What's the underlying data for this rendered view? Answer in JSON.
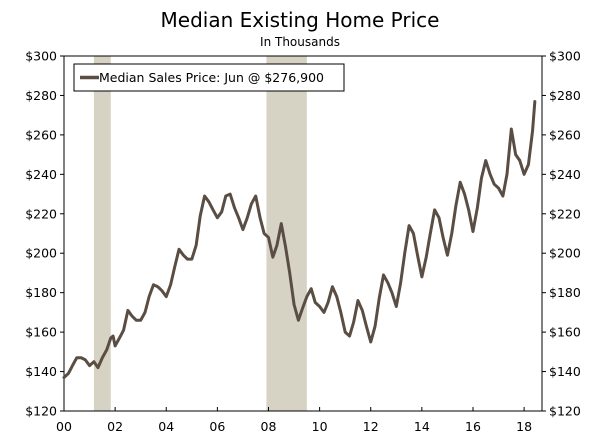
{
  "chart_data": {
    "type": "line",
    "title": "Median Existing Home Price",
    "subtitle": "In Thousands",
    "xlabel": "",
    "ylabel": "",
    "x_range": [
      2000,
      2018.7
    ],
    "ylim": [
      120,
      300
    ],
    "y_ticks": [
      120,
      140,
      160,
      180,
      200,
      220,
      240,
      260,
      280,
      300
    ],
    "y_tick_labels": [
      "$120",
      "$140",
      "$160",
      "$180",
      "$200",
      "$220",
      "$240",
      "$260",
      "$280",
      "$300"
    ],
    "x_ticks": [
      2000,
      2002,
      2004,
      2006,
      2008,
      2010,
      2012,
      2014,
      2016,
      2018
    ],
    "x_tick_labels": [
      "00",
      "02",
      "04",
      "06",
      "08",
      "10",
      "12",
      "14",
      "16",
      "18"
    ],
    "grid": false,
    "legend": {
      "placement": "top-left",
      "label": "Median Sales Price: Jun @ $276,900"
    },
    "line_color": "#5a4d43",
    "recession_color": "#d6d2c4",
    "recessions": [
      {
        "start": 2001.17,
        "end": 2001.83
      },
      {
        "start": 2007.92,
        "end": 2009.5
      }
    ],
    "series": [
      {
        "name": "Median Sales Price",
        "points": [
          [
            2000.0,
            137
          ],
          [
            2000.17,
            139
          ],
          [
            2000.33,
            143
          ],
          [
            2000.5,
            147
          ],
          [
            2000.67,
            147
          ],
          [
            2000.83,
            146
          ],
          [
            2001.0,
            143
          ],
          [
            2001.17,
            145
          ],
          [
            2001.33,
            142
          ],
          [
            2001.5,
            147
          ],
          [
            2001.67,
            151
          ],
          [
            2001.83,
            157
          ],
          [
            2001.92,
            158
          ],
          [
            2002.0,
            153
          ],
          [
            2002.17,
            157
          ],
          [
            2002.33,
            161
          ],
          [
            2002.5,
            171
          ],
          [
            2002.67,
            168
          ],
          [
            2002.83,
            166
          ],
          [
            2003.0,
            166
          ],
          [
            2003.17,
            170
          ],
          [
            2003.33,
            178
          ],
          [
            2003.5,
            184
          ],
          [
            2003.67,
            183
          ],
          [
            2003.83,
            181
          ],
          [
            2004.0,
            178
          ],
          [
            2004.17,
            184
          ],
          [
            2004.33,
            193
          ],
          [
            2004.5,
            202
          ],
          [
            2004.67,
            199
          ],
          [
            2004.83,
            197
          ],
          [
            2005.0,
            197
          ],
          [
            2005.17,
            204
          ],
          [
            2005.33,
            219
          ],
          [
            2005.5,
            229
          ],
          [
            2005.67,
            226
          ],
          [
            2005.83,
            222
          ],
          [
            2006.0,
            218
          ],
          [
            2006.17,
            221
          ],
          [
            2006.33,
            229
          ],
          [
            2006.5,
            230
          ],
          [
            2006.67,
            223
          ],
          [
            2006.83,
            218
          ],
          [
            2007.0,
            212
          ],
          [
            2007.17,
            218
          ],
          [
            2007.33,
            225
          ],
          [
            2007.5,
            229
          ],
          [
            2007.67,
            218
          ],
          [
            2007.83,
            210
          ],
          [
            2008.0,
            208
          ],
          [
            2008.17,
            198
          ],
          [
            2008.33,
            204
          ],
          [
            2008.5,
            215
          ],
          [
            2008.67,
            203
          ],
          [
            2008.83,
            190
          ],
          [
            2009.0,
            174
          ],
          [
            2009.17,
            166
          ],
          [
            2009.33,
            172
          ],
          [
            2009.5,
            178
          ],
          [
            2009.67,
            182
          ],
          [
            2009.83,
            175
          ],
          [
            2010.0,
            173
          ],
          [
            2010.17,
            170
          ],
          [
            2010.33,
            175
          ],
          [
            2010.5,
            183
          ],
          [
            2010.67,
            178
          ],
          [
            2010.83,
            170
          ],
          [
            2011.0,
            160
          ],
          [
            2011.17,
            158
          ],
          [
            2011.33,
            165
          ],
          [
            2011.5,
            176
          ],
          [
            2011.67,
            171
          ],
          [
            2011.83,
            163
          ],
          [
            2012.0,
            155
          ],
          [
            2012.17,
            163
          ],
          [
            2012.33,
            177
          ],
          [
            2012.5,
            189
          ],
          [
            2012.67,
            185
          ],
          [
            2012.83,
            180
          ],
          [
            2013.0,
            173
          ],
          [
            2013.17,
            185
          ],
          [
            2013.33,
            200
          ],
          [
            2013.5,
            214
          ],
          [
            2013.67,
            210
          ],
          [
            2013.83,
            199
          ],
          [
            2014.0,
            188
          ],
          [
            2014.17,
            198
          ],
          [
            2014.33,
            210
          ],
          [
            2014.5,
            222
          ],
          [
            2014.67,
            218
          ],
          [
            2014.83,
            208
          ],
          [
            2015.0,
            199
          ],
          [
            2015.17,
            210
          ],
          [
            2015.33,
            224
          ],
          [
            2015.5,
            236
          ],
          [
            2015.67,
            230
          ],
          [
            2015.83,
            222
          ],
          [
            2016.0,
            211
          ],
          [
            2016.17,
            223
          ],
          [
            2016.33,
            238
          ],
          [
            2016.5,
            247
          ],
          [
            2016.67,
            240
          ],
          [
            2016.83,
            235
          ],
          [
            2017.0,
            233
          ],
          [
            2017.17,
            229
          ],
          [
            2017.33,
            240
          ],
          [
            2017.5,
            263
          ],
          [
            2017.67,
            250
          ],
          [
            2017.83,
            247
          ],
          [
            2018.0,
            240
          ],
          [
            2018.17,
            245
          ],
          [
            2018.33,
            262
          ],
          [
            2018.42,
            276.9
          ]
        ]
      }
    ]
  }
}
